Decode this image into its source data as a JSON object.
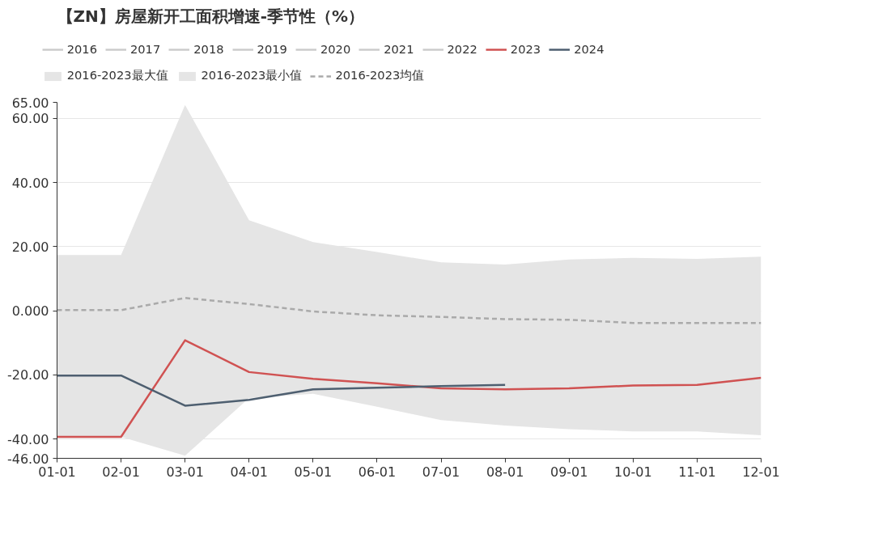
{
  "chart_data": {
    "type": "line",
    "title": "【ZN】房屋新开工面积增速-季节性（%）",
    "categories": [
      "01-01",
      "02-01",
      "03-01",
      "04-01",
      "05-01",
      "06-01",
      "07-01",
      "08-01",
      "09-01",
      "10-01",
      "11-01",
      "12-01"
    ],
    "ylim": [
      -46,
      65
    ],
    "yticks": [
      {
        "value": -46,
        "label": "-46.00"
      },
      {
        "value": -40,
        "label": "-40.00"
      },
      {
        "value": -20,
        "label": "-20.00"
      },
      {
        "value": 0,
        "label": "0.000"
      },
      {
        "value": 20,
        "label": "20.00"
      },
      {
        "value": 40,
        "label": "40.00"
      },
      {
        "value": 60,
        "label": "60.00"
      },
      {
        "value": 65,
        "label": "65.00"
      }
    ],
    "grid": "y",
    "legend": "top",
    "series": [
      {
        "name": "2016",
        "color": "#cccccc",
        "values": [
          null,
          null,
          null,
          null,
          null,
          null,
          null,
          null,
          null,
          null,
          null,
          null
        ]
      },
      {
        "name": "2017",
        "color": "#cccccc",
        "values": [
          null,
          null,
          null,
          null,
          null,
          null,
          null,
          null,
          null,
          null,
          null,
          null
        ]
      },
      {
        "name": "2018",
        "color": "#cccccc",
        "values": [
          null,
          null,
          null,
          null,
          null,
          null,
          null,
          null,
          null,
          null,
          null,
          null
        ]
      },
      {
        "name": "2019",
        "color": "#cccccc",
        "values": [
          null,
          null,
          null,
          null,
          null,
          null,
          null,
          null,
          null,
          null,
          null,
          null
        ]
      },
      {
        "name": "2020",
        "color": "#cccccc",
        "values": [
          null,
          null,
          null,
          null,
          null,
          null,
          null,
          null,
          null,
          null,
          null,
          null
        ]
      },
      {
        "name": "2021",
        "color": "#cccccc",
        "values": [
          null,
          null,
          null,
          null,
          null,
          null,
          null,
          null,
          null,
          null,
          null,
          null
        ]
      },
      {
        "name": "2022",
        "color": "#cccccc",
        "values": [
          null,
          null,
          null,
          null,
          null,
          null,
          null,
          null,
          null,
          null,
          null,
          null
        ]
      },
      {
        "name": "2023",
        "color": "#d05252",
        "values": [
          -39.3,
          -39.3,
          -9.2,
          -19.1,
          -21.2,
          -22.6,
          -24.2,
          -24.5,
          -24.2,
          -23.3,
          -23.1,
          -20.9
        ]
      },
      {
        "name": "2024",
        "color": "#4e5f70",
        "values": [
          -20.2,
          -20.2,
          -29.6,
          -27.8,
          -24.5,
          -24.0,
          -23.5,
          -23.1,
          null,
          null,
          null,
          null
        ]
      },
      {
        "name": "2016-2023最大值",
        "type": "area",
        "color": "#e5e5e5",
        "values": [
          17.4,
          17.4,
          64.2,
          28.2,
          21.4,
          18.3,
          15.1,
          14.4,
          16.0,
          16.5,
          16.2,
          16.9
        ]
      },
      {
        "name": "2016-2023最小值",
        "type": "area",
        "color": "#e5e5e5",
        "values": [
          -39.3,
          -39.3,
          -45.2,
          -27.2,
          -25.9,
          -29.9,
          -34.1,
          -35.8,
          -36.9,
          -37.6,
          -37.6,
          -38.8
        ]
      },
      {
        "name": "2016-2023均值",
        "color": "#aaaaaa",
        "line_style": "dashed",
        "values": [
          0.2,
          0.2,
          4.0,
          2.1,
          -0.2,
          -1.4,
          -1.9,
          -2.6,
          -2.8,
          -3.8,
          -3.8,
          -3.8
        ]
      }
    ]
  }
}
